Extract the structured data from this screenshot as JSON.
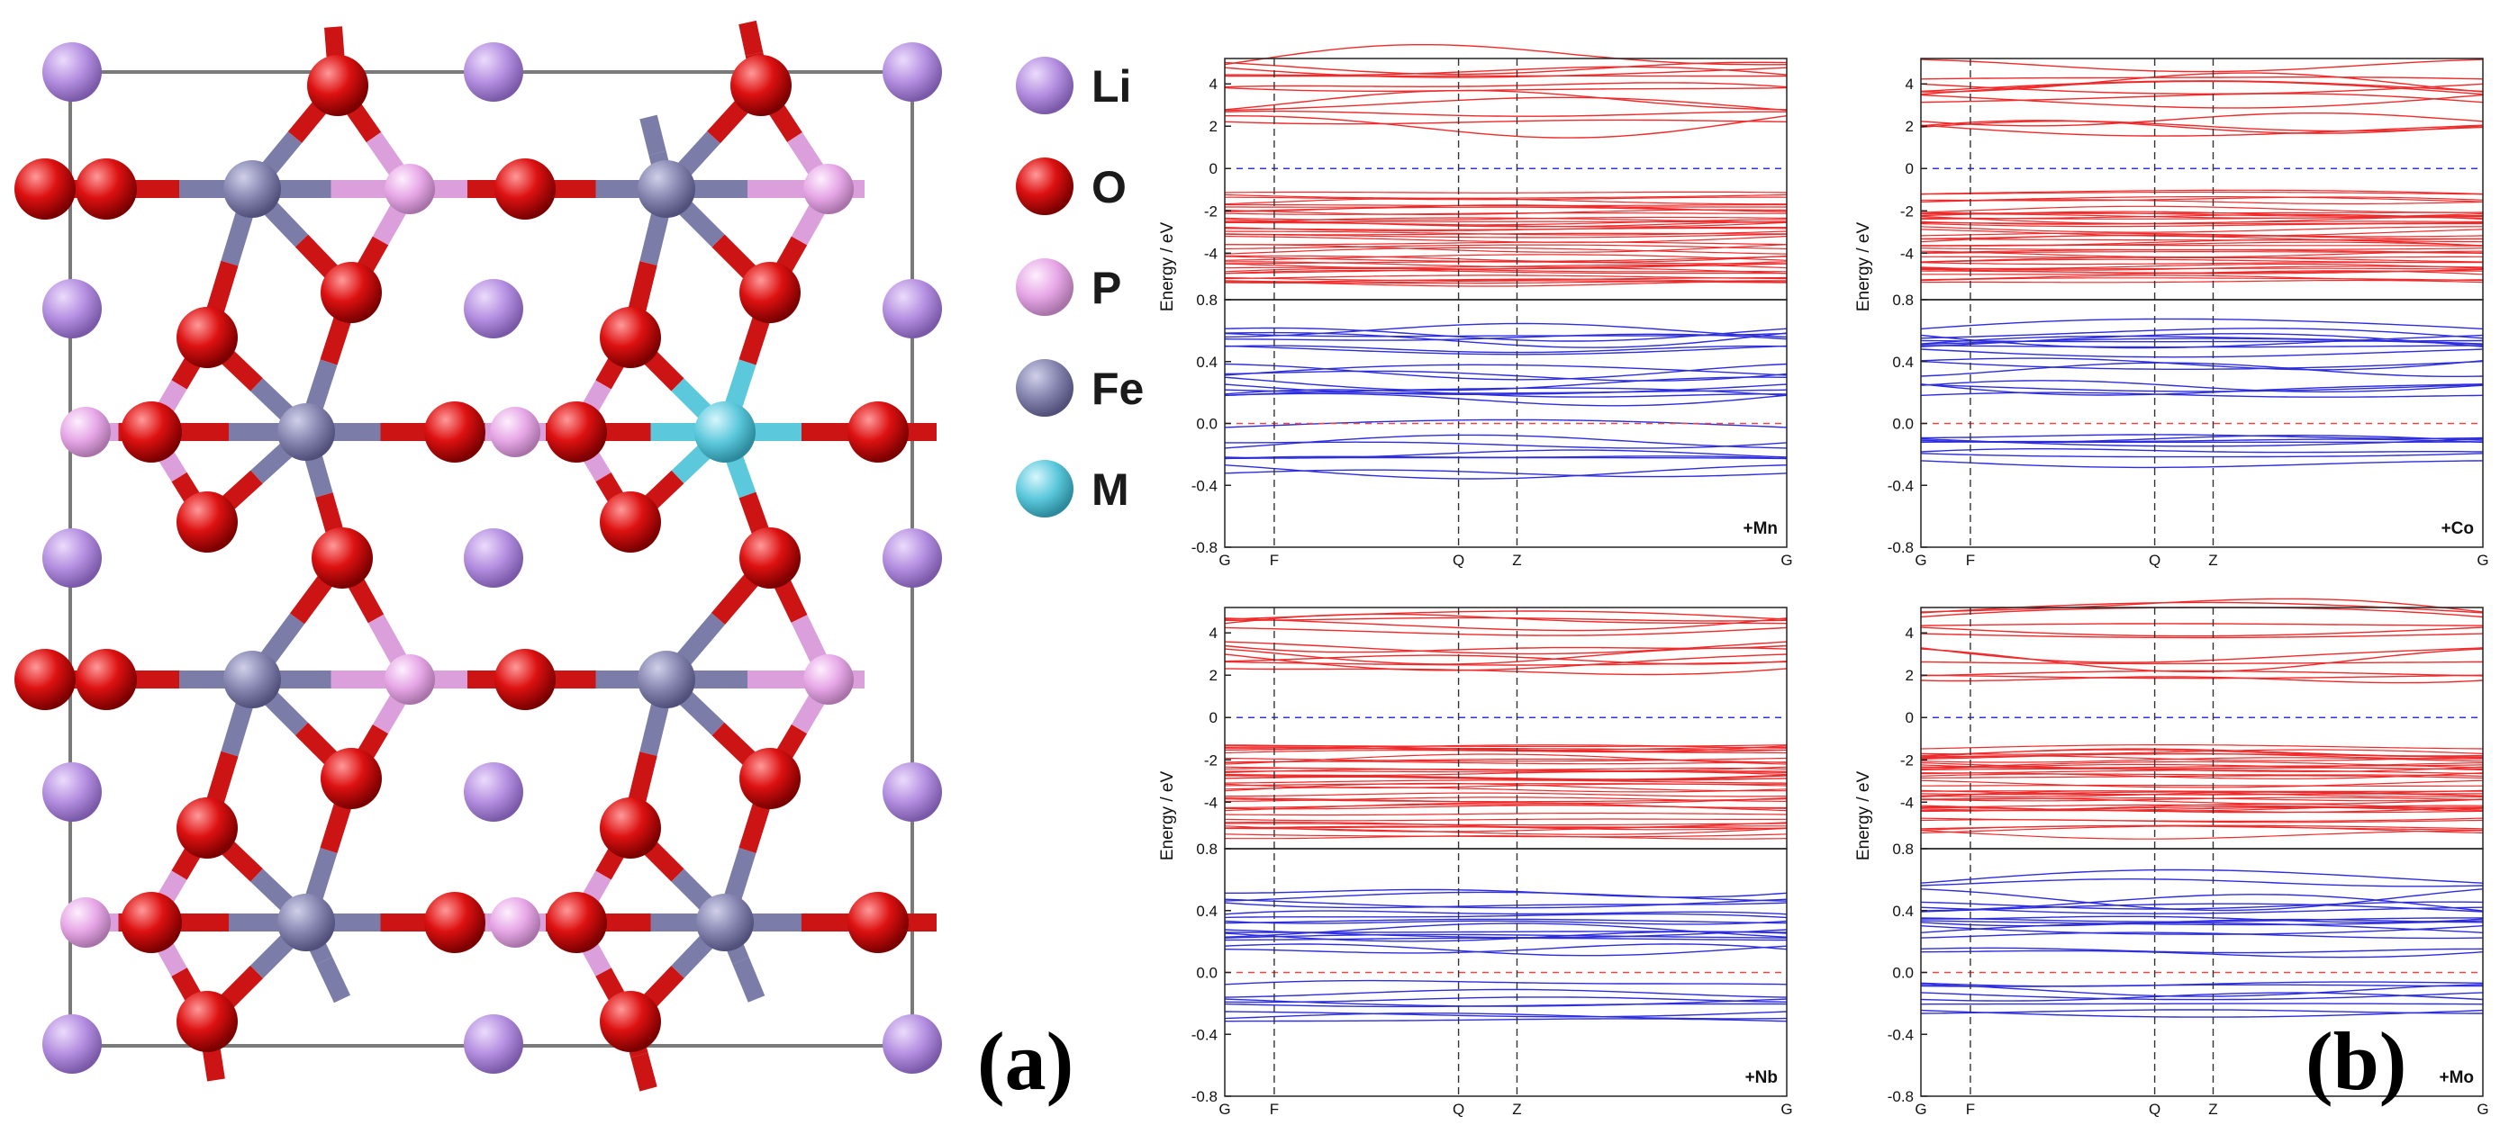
{
  "legend": [
    {
      "element": "Li",
      "color": "#b48ee0"
    },
    {
      "element": "O",
      "color": "#dd1111"
    },
    {
      "element": "P",
      "color": "#e6a6e6"
    },
    {
      "element": "Fe",
      "color": "#8585b0"
    },
    {
      "element": "M",
      "color": "#5cc8dc"
    }
  ],
  "panel_labels": {
    "a": "(a)",
    "b": "(b)"
  },
  "axis": {
    "ylabel": "Energy / eV",
    "kpoints": [
      "G",
      "F",
      "Q",
      "Z",
      "G"
    ]
  },
  "colors": {
    "spin_up": "#ef2a2a",
    "spin_down": "#2d2ddd"
  },
  "chart_data": [
    {
      "type": "line",
      "dopant": "+Mn",
      "upper": {
        "yticks": [
          "4",
          "2",
          "0",
          "-2",
          "-4"
        ],
        "ylim": [
          -6.2,
          5.2
        ]
      },
      "lower": {
        "yticks": [
          "0.8",
          "0.4",
          "0.0",
          "-0.4",
          "-0.8"
        ],
        "ylim": [
          -0.8,
          0.8
        ]
      }
    },
    {
      "type": "line",
      "dopant": "+Co",
      "upper": {
        "yticks": [
          "4",
          "2",
          "0",
          "-2",
          "-4"
        ],
        "ylim": [
          -6.2,
          5.2
        ]
      },
      "lower": {
        "yticks": [
          "0.8",
          "0.4",
          "0.0",
          "-0.4",
          "-0.8"
        ],
        "ylim": [
          -0.8,
          0.8
        ]
      }
    },
    {
      "type": "line",
      "dopant": "+Nb",
      "upper": {
        "yticks": [
          "4",
          "2",
          "0",
          "-2",
          "-4"
        ],
        "ylim": [
          -6.2,
          5.2
        ]
      },
      "lower": {
        "yticks": [
          "0.8",
          "0.4",
          "0.0",
          "-0.4",
          "-0.8"
        ],
        "ylim": [
          -0.8,
          0.8
        ]
      }
    },
    {
      "type": "line",
      "dopant": "+Mo",
      "upper": {
        "yticks": [
          "4",
          "2",
          "0",
          "-2",
          "-4"
        ],
        "ylim": [
          -6.2,
          5.2
        ]
      },
      "lower": {
        "yticks": [
          "0.8",
          "0.4",
          "0.0",
          "-0.4",
          "-0.8"
        ],
        "ylim": [
          -0.8,
          0.8
        ]
      }
    }
  ]
}
